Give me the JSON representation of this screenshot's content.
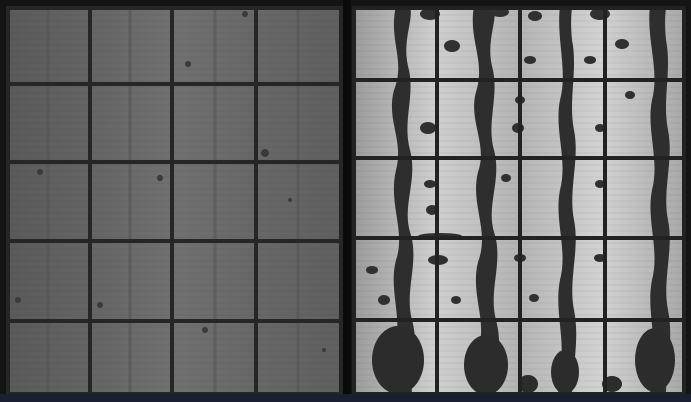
{
  "figure": {
    "description_free": true,
    "panels": [
      {
        "id": "left",
        "tone": "uniform-gray",
        "base_color": "#6b6b6b",
        "grid_rows": 5,
        "grid_cols": 4
      },
      {
        "id": "right",
        "tone": "bright-with-dark-defects",
        "base_color": "#b9b9b9",
        "defect_color": "#2f2f2f",
        "grid_rows": 5,
        "grid_cols": 4
      }
    ],
    "grid_line_color": "#242424",
    "frame_color": "#0c0c0c"
  }
}
